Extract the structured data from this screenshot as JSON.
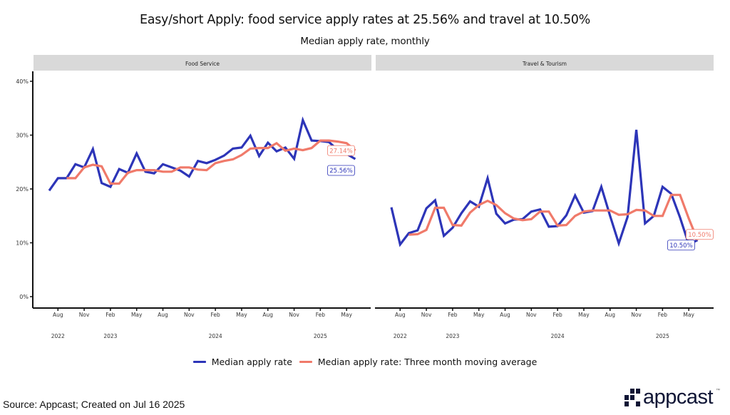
{
  "title": "Easy/short Apply: food service apply rates at 25.56% and travel at 10.50%",
  "subtitle": "Median apply rate, monthly",
  "colors": {
    "median": "#2d35b8",
    "moving_average": "#f07a6a",
    "facet_header_bg": "#d9d9d9",
    "axis": "#111111"
  },
  "legend": {
    "items": [
      {
        "label": "Median apply rate",
        "series": "median"
      },
      {
        "label": "Median apply rate: Three month moving average",
        "series": "moving_average"
      }
    ]
  },
  "footer": {
    "source": "Source: Appcast; Created on Jul 16 2025",
    "logo_text": "appcast",
    "logo_tm": "™"
  },
  "chart_data": [
    {
      "type": "line",
      "facet": "Food Service",
      "ylabel": "",
      "xlabel": "",
      "ylim": [
        0,
        40
      ],
      "yticks": [
        "0%",
        "10%",
        "20%",
        "30%",
        "40%"
      ],
      "ytick_values": [
        0,
        10,
        20,
        30,
        40
      ],
      "x_start": "2022-07",
      "x_end": "2025-06",
      "xticks": [
        {
          "month": "2022-08",
          "label": "Aug",
          "year": "2022"
        },
        {
          "month": "2022-11",
          "label": "Nov",
          "year": ""
        },
        {
          "month": "2023-02",
          "label": "Feb",
          "year": "2023"
        },
        {
          "month": "2023-05",
          "label": "May",
          "year": ""
        },
        {
          "month": "2023-08",
          "label": "Aug",
          "year": ""
        },
        {
          "month": "2023-11",
          "label": "Nov",
          "year": ""
        },
        {
          "month": "2024-02",
          "label": "Feb",
          "year": "2024"
        },
        {
          "month": "2024-05",
          "label": "May",
          "year": ""
        },
        {
          "month": "2024-08",
          "label": "Aug",
          "year": ""
        },
        {
          "month": "2024-11",
          "label": "Nov",
          "year": ""
        },
        {
          "month": "2025-02",
          "label": "Feb",
          "year": "2025"
        },
        {
          "month": "2025-05",
          "label": "May",
          "year": ""
        }
      ],
      "series": [
        {
          "name": "Median apply rate",
          "key": "median",
          "start": "2022-07",
          "values": [
            19.7,
            22.0,
            22.0,
            24.6,
            24.0,
            27.4,
            21.1,
            20.4,
            23.7,
            23.0,
            26.6,
            23.2,
            22.9,
            24.6,
            24.0,
            23.4,
            22.3,
            25.2,
            24.8,
            25.4,
            26.2,
            27.5,
            27.7,
            29.9,
            26.1,
            28.6,
            27.0,
            27.7,
            25.6,
            32.8,
            29.0,
            28.9,
            28.7,
            27.2,
            26.5,
            25.56
          ],
          "end_label": "25.56%"
        },
        {
          "name": "Median apply rate: Three month moving average",
          "key": "moving_average",
          "start": "2022-09",
          "values": [
            22.0,
            22.0,
            24.0,
            24.5,
            24.2,
            21.0,
            21.0,
            23.0,
            23.5,
            23.5,
            23.5,
            23.2,
            23.2,
            24.0,
            24.0,
            23.6,
            23.5,
            24.8,
            25.2,
            25.5,
            26.3,
            27.5,
            27.6,
            27.6,
            28.5,
            27.1,
            27.5,
            27.2,
            27.6,
            29.0,
            29.0,
            28.8,
            28.5,
            27.14
          ],
          "end_label": "27.14%"
        }
      ]
    },
    {
      "type": "line",
      "facet": "Travel & Tourism",
      "ylabel": "",
      "xlabel": "",
      "ylim": [
        0,
        40
      ],
      "x_start": "2022-07",
      "x_end": "2025-06",
      "xticks": [
        {
          "month": "2022-08",
          "label": "Aug",
          "year": "2022"
        },
        {
          "month": "2022-11",
          "label": "Nov",
          "year": ""
        },
        {
          "month": "2023-02",
          "label": "Feb",
          "year": "2023"
        },
        {
          "month": "2023-05",
          "label": "May",
          "year": ""
        },
        {
          "month": "2023-08",
          "label": "Aug",
          "year": ""
        },
        {
          "month": "2023-11",
          "label": "Nov",
          "year": ""
        },
        {
          "month": "2024-02",
          "label": "Feb",
          "year": "2024"
        },
        {
          "month": "2024-05",
          "label": "May",
          "year": ""
        },
        {
          "month": "2024-08",
          "label": "Aug",
          "year": ""
        },
        {
          "month": "2024-11",
          "label": "Nov",
          "year": ""
        },
        {
          "month": "2025-02",
          "label": "Feb",
          "year": "2025"
        },
        {
          "month": "2025-05",
          "label": "May",
          "year": ""
        }
      ],
      "series": [
        {
          "name": "Median apply rate",
          "key": "median",
          "start": "2022-07",
          "values": [
            16.6,
            9.7,
            11.8,
            12.3,
            16.4,
            17.9,
            11.3,
            12.8,
            15.5,
            17.7,
            16.7,
            22.0,
            15.4,
            13.6,
            14.3,
            14.4,
            15.8,
            16.2,
            13.0,
            13.1,
            15.1,
            18.8,
            15.6,
            15.9,
            20.4,
            15.0,
            9.9,
            14.8,
            31.0,
            13.6,
            15.0,
            20.4,
            19.1,
            14.7,
            9.7,
            10.5
          ],
          "end_label": "10.50%"
        },
        {
          "name": "Median apply rate: Three month moving average",
          "key": "moving_average",
          "start": "2022-09",
          "values": [
            11.5,
            11.6,
            12.4,
            16.5,
            16.5,
            13.3,
            13.2,
            15.6,
            17.0,
            17.8,
            17.0,
            15.5,
            14.5,
            14.2,
            14.4,
            15.8,
            15.8,
            13.2,
            13.3,
            15.0,
            15.8,
            16.0,
            16.0,
            16.0,
            15.2,
            15.3,
            16.1,
            16.0,
            15.0,
            15.0,
            18.9,
            18.9,
            14.5,
            10.5
          ],
          "end_label": "10.50%"
        }
      ]
    }
  ]
}
